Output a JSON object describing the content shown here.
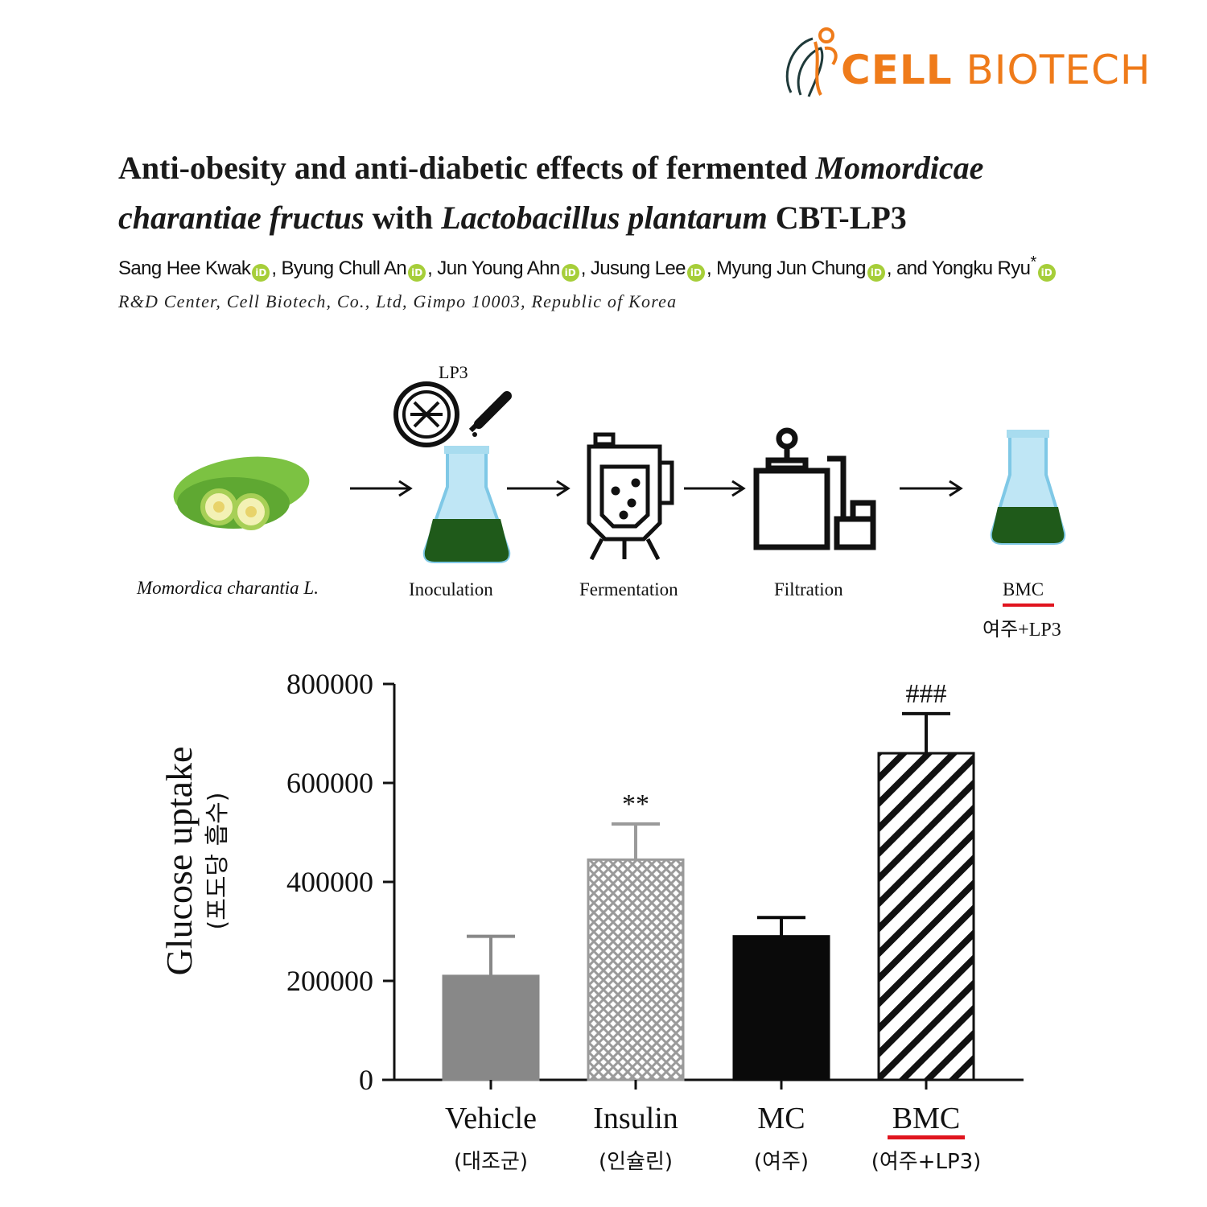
{
  "logo": {
    "brand_bold": "CELL",
    "brand_light": "BIOTECH",
    "brand_color": "#ef7b1a"
  },
  "paper": {
    "title_part1": "Anti-obesity and anti-diabetic effects of fermented ",
    "title_italic1": "Momordicae charantiae fructus",
    "title_part2": " with ",
    "title_italic2": "Lactobacillus plantarum",
    "title_part3": " CBT-LP3",
    "authors": [
      "Sang Hee Kwak",
      ", Byung Chull An",
      ", Jun Young Ahn",
      ", Jusung Lee",
      ", Myung Jun Chung",
      ", and Yongku Ryu"
    ],
    "corresponding_mark": "*",
    "orcid_label": "iD",
    "affiliation": "R&D Center, Cell Biotech, Co., Ltd, Gimpo 10003, Republic of Korea"
  },
  "process": {
    "lp3_label": "LP3",
    "steps": [
      "Momordica charantia L.",
      "Inoculation",
      "Fermentation",
      "Filtration",
      "BMC"
    ],
    "bmc_korean": "여주+LP3",
    "liquid_color": "#1f5a1a",
    "flask_color": "#bfe6f5"
  },
  "chart_data": {
    "type": "bar",
    "categories": [
      "Vehicle",
      "Insulin",
      "MC",
      "BMC"
    ],
    "categories_korean": [
      "(대조군)",
      "(인슐린)",
      "(여주)",
      "(여주+LP3)"
    ],
    "values": [
      210000,
      445000,
      290000,
      660000
    ],
    "errors": [
      80000,
      72000,
      38000,
      80000
    ],
    "significance": [
      "",
      "**",
      "",
      "###"
    ],
    "ylabel": "Glucose uptake",
    "ylabel_korean": "(포도당 흡수)",
    "xlabel": "",
    "ylim": [
      0,
      800000
    ],
    "yticks": [
      0,
      200000,
      400000,
      600000,
      800000
    ],
    "bar_fills": [
      "solid-gray",
      "crosshatch-gray",
      "solid-black",
      "diagonal-black"
    ],
    "highlight_category": "BMC",
    "highlight_color": "#e0141e"
  }
}
